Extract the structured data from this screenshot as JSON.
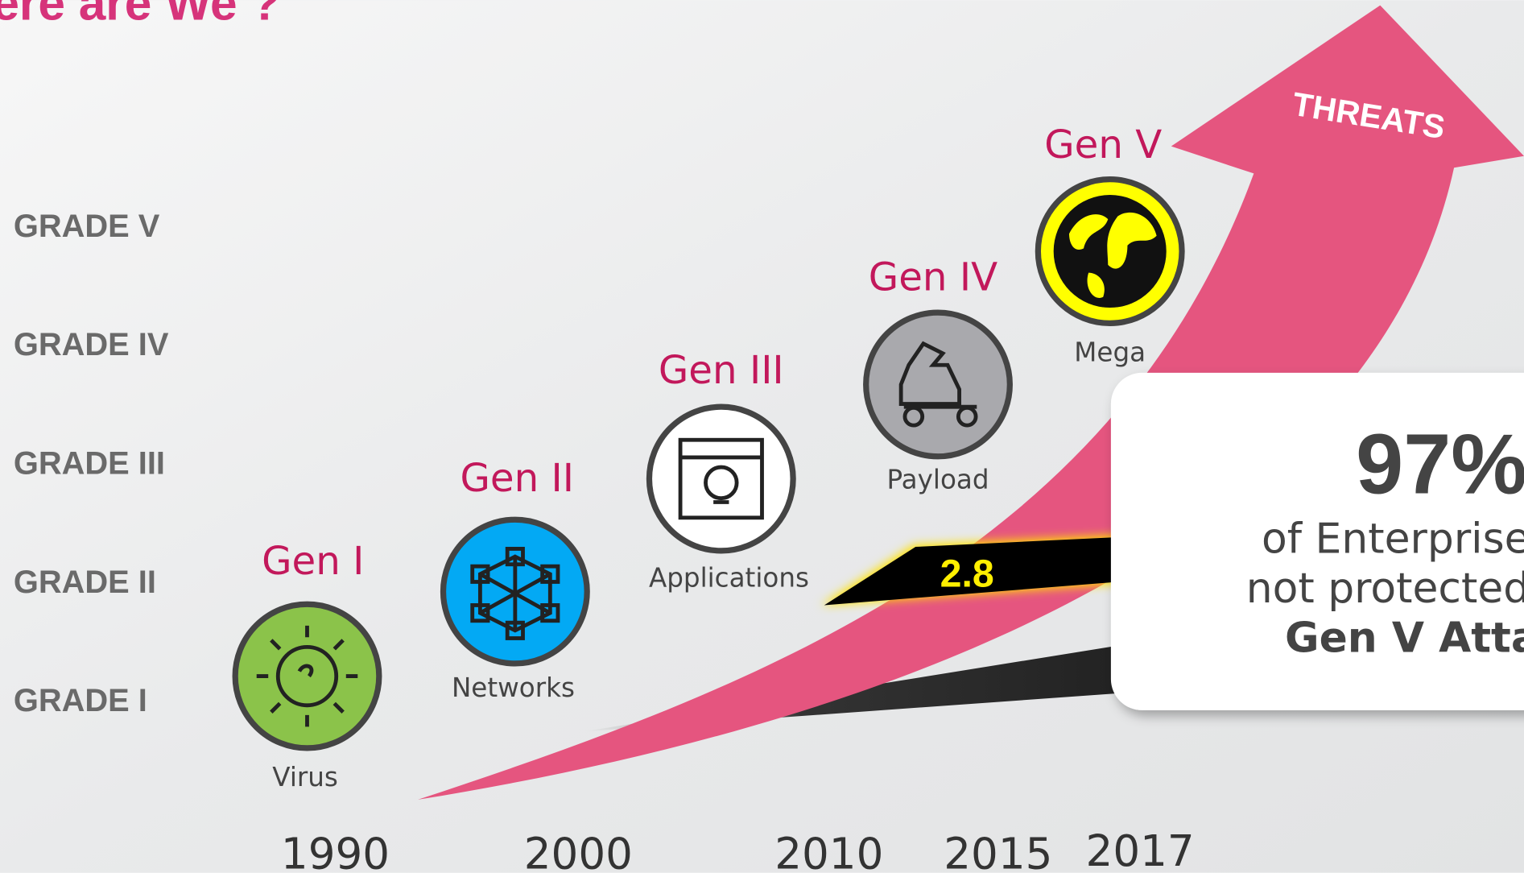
{
  "header": {
    "title": "ere are We ?"
  },
  "grades": [
    "GRADE V",
    "GRADE IV",
    "GRADE III",
    "GRADE II",
    "GRADE I"
  ],
  "generations": [
    {
      "label": "Gen I",
      "caption": "Virus"
    },
    {
      "label": "Gen II",
      "caption": "Networks"
    },
    {
      "label": "Gen III",
      "caption": "Applications"
    },
    {
      "label": "Gen IV",
      "caption": "Payload"
    },
    {
      "label": "Gen V",
      "caption": "Mega"
    }
  ],
  "years": [
    "1990",
    "2000",
    "2010",
    "2015",
    "2017"
  ],
  "arrow_label": "THREATS",
  "gap_label": "2.8",
  "callout": {
    "stat": "97%",
    "lines": [
      "of Enterprise",
      "not protected"
    ],
    "bold_line": "Gen V Attac"
  }
}
